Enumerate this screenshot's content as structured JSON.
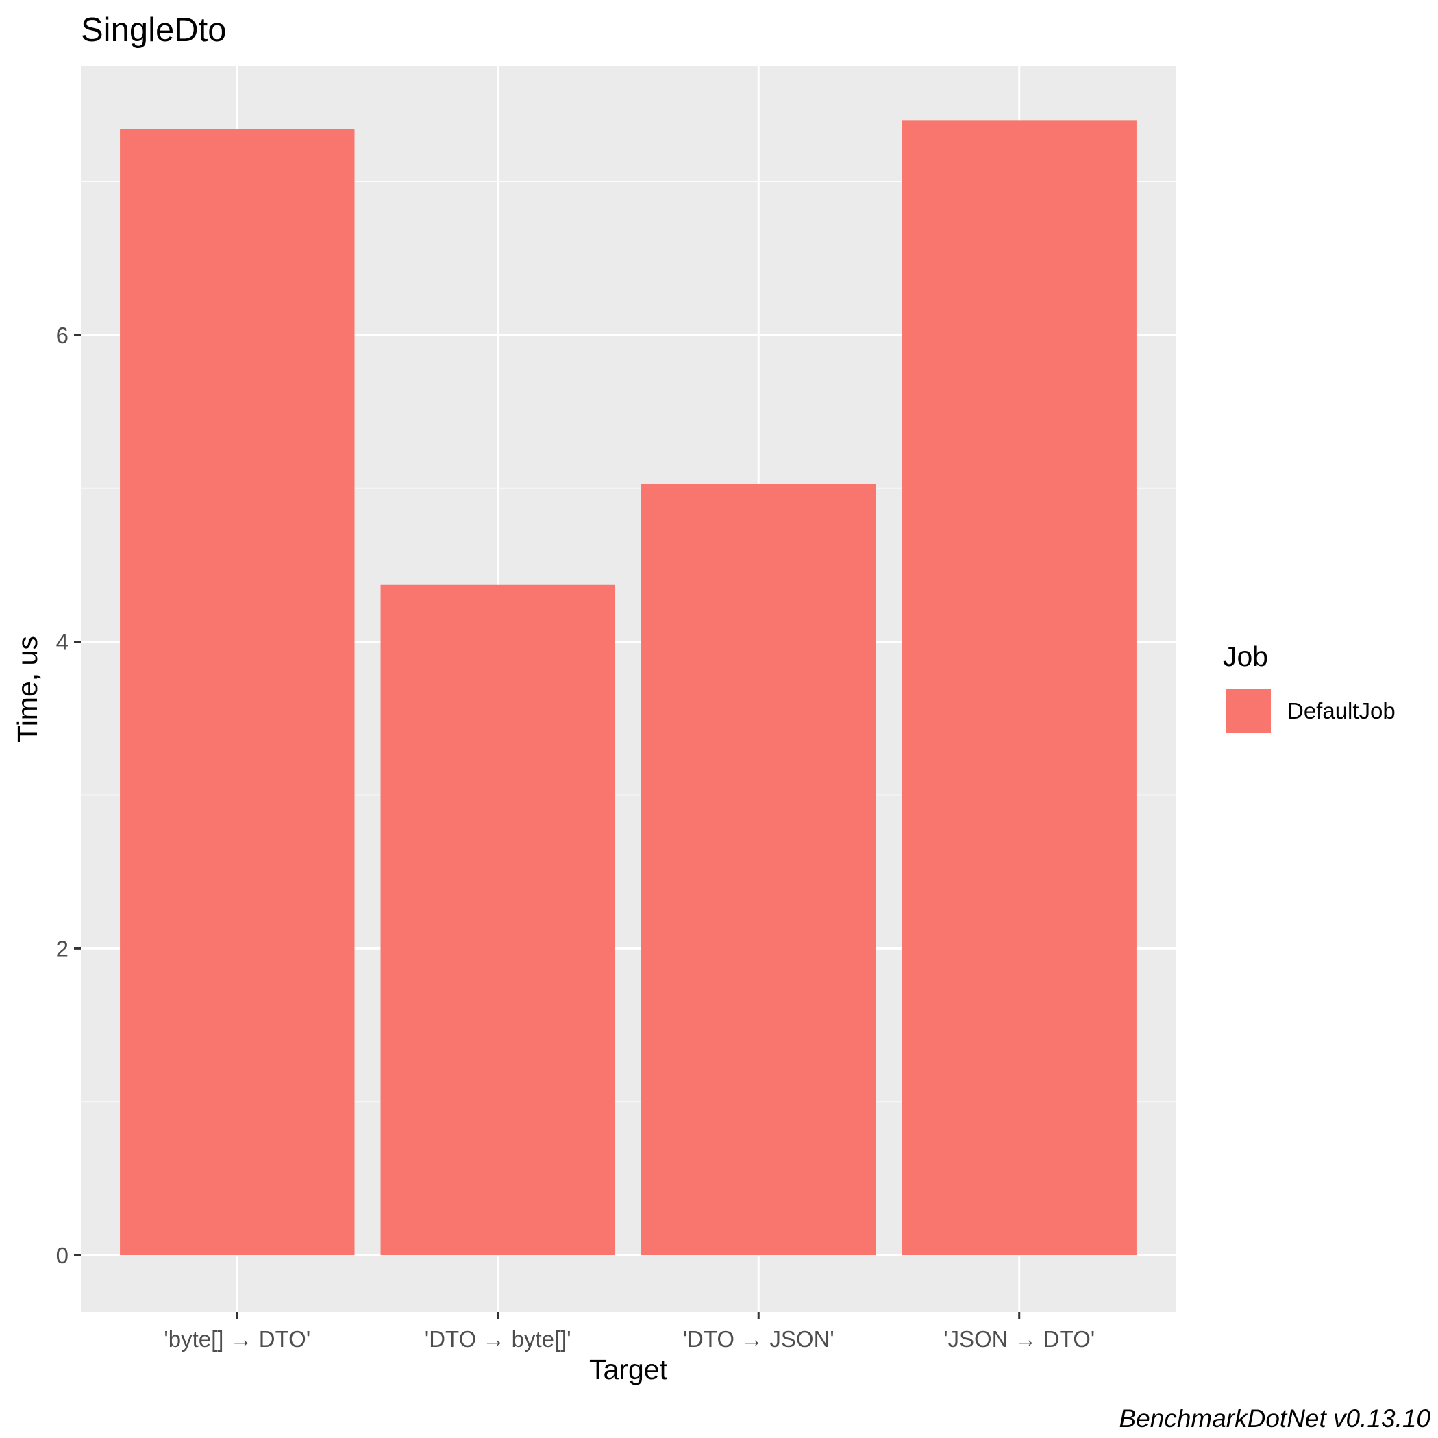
{
  "chart_data": {
    "type": "bar",
    "title": "SingleDto",
    "xlabel": "Target",
    "ylabel": "Time, us",
    "categories": [
      "'byte[] → DTO'",
      "'DTO → byte[]'",
      "'DTO → JSON'",
      "'JSON → DTO'"
    ],
    "series": [
      {
        "name": "DefaultJob",
        "values": [
          7.34,
          4.37,
          5.03,
          7.4
        ],
        "color": "#F8766D"
      }
    ],
    "ylim": [
      -0.37,
      7.75
    ],
    "y_ticks": [
      0,
      2,
      4,
      6
    ],
    "y_tick_labels": [
      "0",
      "2",
      "4",
      "6"
    ],
    "grid": true,
    "panel_background": "#EBEBEB",
    "grid_color": "#FFFFFF",
    "legend": {
      "title": "Job",
      "position": "right"
    },
    "caption": "BenchmarkDotNet v0.13.10"
  }
}
